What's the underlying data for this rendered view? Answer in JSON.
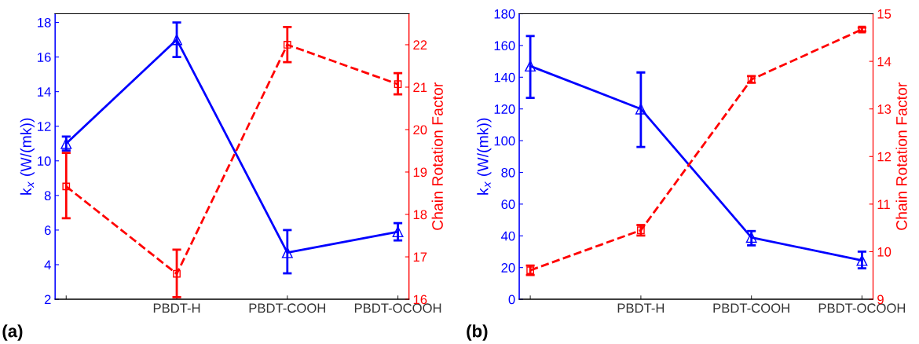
{
  "chart_data": [
    {
      "type": "line",
      "categories": [
        null,
        "PBDT-H",
        "PBDT-COOH",
        "PBDT-OCOOH"
      ],
      "ylabel": "k$_{x}$ (W/(mk))",
      "y2label": "Chain Rotation Factor",
      "annotations": [
        "(a)"
      ],
      "ylim": [
        2,
        18.5
      ],
      "yticks": [
        2,
        4,
        6,
        8,
        10,
        12,
        14,
        16,
        18
      ],
      "y2lim": [
        16,
        22.73
      ],
      "y2ticks": [
        16,
        17,
        18,
        19,
        20,
        21,
        22
      ],
      "grid": false,
      "legend": false,
      "series": [
        {
          "color": "#0000ff",
          "values": [
            11,
            17,
            4.7,
            5.9
          ],
          "errors": [
            [
              10.6,
              11.4
            ],
            [
              16,
              18
            ],
            [
              3.5,
              6
            ],
            [
              5.4,
              6.4
            ]
          ],
          "marker": "triangle",
          "line_style": "solid"
        },
        {
          "color": "#ff0000",
          "axis": "y2",
          "values": [
            18.66,
            16.6,
            22,
            21.07
          ],
          "errors": [
            [
              17.91,
              19.45
            ],
            [
              16.05,
              17.17
            ],
            [
              21.59,
              22.42
            ],
            [
              20.83,
              21.33
            ]
          ],
          "marker": "square",
          "line_style": "dashed"
        }
      ]
    },
    {
      "type": "line",
      "categories": [
        null,
        "PBDT-H",
        "PBDT-COOH",
        "PBDT-OCOOH"
      ],
      "ylabel": "k$_{x}$ (W/(mk))",
      "y2label": "Chain Rotation Factor",
      "annotations": [
        "(b)"
      ],
      "ylim": [
        0,
        180
      ],
      "yticks": [
        0,
        20,
        40,
        60,
        80,
        100,
        120,
        140,
        160,
        180
      ],
      "y2lim": [
        9,
        15
      ],
      "y2ticks": [
        9,
        10,
        11,
        12,
        13,
        14,
        15
      ],
      "grid": false,
      "legend": false,
      "series": [
        {
          "color": "#0000ff",
          "values": [
            147,
            120,
            39,
            24.5
          ],
          "errors": [
            [
              127,
              166
            ],
            [
              96,
              143
            ],
            [
              34,
              43
            ],
            [
              19.5,
              30
            ]
          ],
          "marker": "triangle",
          "line_style": "solid"
        },
        {
          "color": "#ff0000",
          "axis": "y2",
          "values": [
            9.61,
            10.45,
            13.62,
            14.67
          ],
          "errors": [
            [
              9.51,
              9.71
            ],
            [
              10.34,
              10.56
            ],
            [
              13.55,
              13.69
            ],
            [
              14.63,
              14.71
            ]
          ],
          "marker": "square",
          "line_style": "dashed"
        }
      ]
    }
  ]
}
